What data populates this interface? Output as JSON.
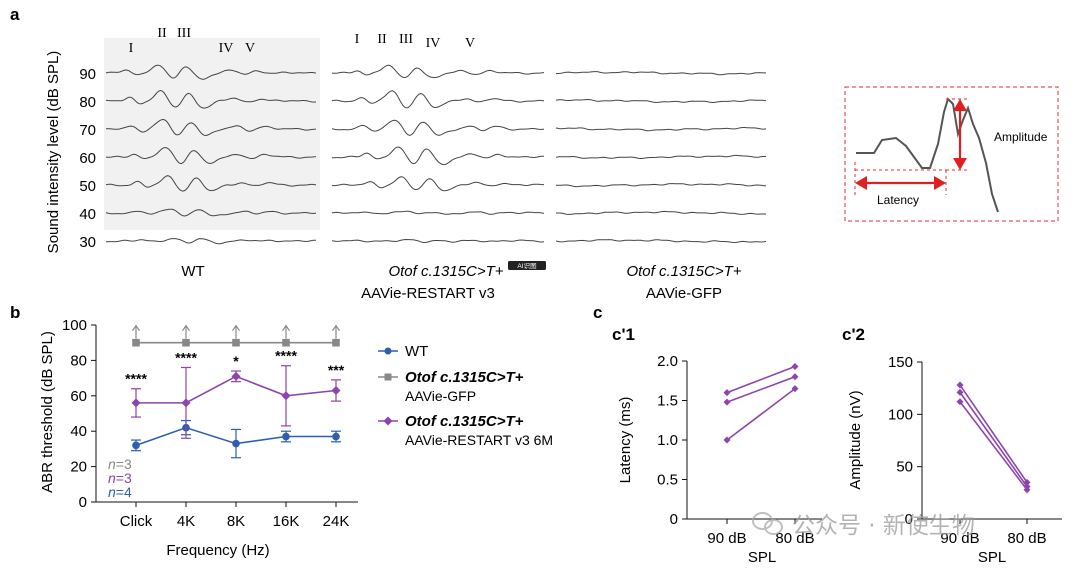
{
  "panel_labels": {
    "a": "a",
    "b": "b",
    "c": "c",
    "c1": "c'1",
    "c2": "c'2"
  },
  "panel_a": {
    "ylabel": "Sound intensity level (dB SPL)",
    "levels": [
      "90",
      "80",
      "70",
      "60",
      "50",
      "40",
      "30"
    ],
    "groups": [
      {
        "label_italic": "",
        "label": "WT",
        "peaks": [
          "I",
          "II",
          "III",
          "IV",
          "V"
        ]
      },
      {
        "label_italic": "Otof c.1315C>T+",
        "label": "AAVie-RESTART v3",
        "peaks": [
          "I",
          "II",
          "III",
          "IV",
          "V"
        ],
        "badge": "AI识图"
      },
      {
        "label_italic": "Otof c.1315C>T+",
        "label": "AAVie-GFP",
        "peaks": []
      }
    ],
    "inset": {
      "amplitude": "Amplitude",
      "latency": "Latency"
    }
  },
  "chart_data": [
    {
      "type": "line",
      "title": "",
      "xlabel": "Frequency (Hz)",
      "ylabel": "ABR threshold (dB SPL)",
      "categories": [
        "Click",
        "4K",
        "8K",
        "16K",
        "24K"
      ],
      "ylim": [
        0,
        100
      ],
      "yticks": [
        "0",
        "20",
        "40",
        "60",
        "80",
        "100"
      ],
      "series": [
        {
          "name": "WT",
          "name_italic": "",
          "name_line2": "",
          "color": "#2e5fae",
          "marker": "circle",
          "values": [
            32,
            42,
            33,
            37,
            37
          ],
          "errors": [
            3,
            4,
            8,
            3,
            3
          ]
        },
        {
          "name": "Otof c.1315C>T+",
          "name_italic": "Otof c.1315C>T+",
          "name_line2": "AAVie-GFP",
          "color": "#888888",
          "marker": "square",
          "values": [
            90,
            90,
            90,
            90,
            90
          ],
          "errors": [
            0,
            0,
            0,
            0,
            0
          ]
        },
        {
          "name": "Otof c.1315C>T+ AAVie-RESTART v3 6M",
          "name_italic": "Otof c.1315C>T+",
          "name_line2": "AAVie-RESTART v3 6M",
          "color": "#8e44ad",
          "marker": "diamond",
          "values": [
            56,
            56,
            71,
            60,
            63
          ],
          "errors": [
            8,
            20,
            3,
            17,
            6
          ]
        }
      ],
      "significance": [
        "****",
        "****",
        "*",
        "****",
        "***"
      ],
      "n_labels": [
        {
          "text": "n=3",
          "color": "#888888"
        },
        {
          "text": "n=3",
          "color": "#8e44ad"
        },
        {
          "text": "n=4",
          "color": "#2e5fae"
        }
      ]
    },
    {
      "type": "line",
      "title": "c'1",
      "xlabel": "SPL",
      "ylabel": "Latency (ms)",
      "categories": [
        "90 dB",
        "80 dB"
      ],
      "ylim": [
        0,
        2.0
      ],
      "yticks": [
        "0",
        "0.5",
        "1.0",
        "1.5",
        "2.0"
      ],
      "color": "#8e44ad",
      "series": [
        {
          "name": "1",
          "values": [
            1.6,
            1.93
          ]
        },
        {
          "name": "2",
          "values": [
            1.48,
            1.8
          ]
        },
        {
          "name": "3",
          "values": [
            1.0,
            1.65
          ]
        }
      ]
    },
    {
      "type": "line",
      "title": "c'2",
      "xlabel": "SPL",
      "ylabel": "Amplitude (nV)",
      "categories": [
        "90 dB",
        "80 dB"
      ],
      "ylim": [
        0,
        150
      ],
      "yticks": [
        "0",
        "50",
        "100",
        "150"
      ],
      "color": "#8e44ad",
      "series": [
        {
          "name": "1",
          "values": [
            128,
            35
          ]
        },
        {
          "name": "2",
          "values": [
            121,
            31
          ]
        },
        {
          "name": "3",
          "values": [
            112,
            28
          ]
        }
      ]
    }
  ],
  "watermark": {
    "text": "公众号 · 新使生物"
  }
}
